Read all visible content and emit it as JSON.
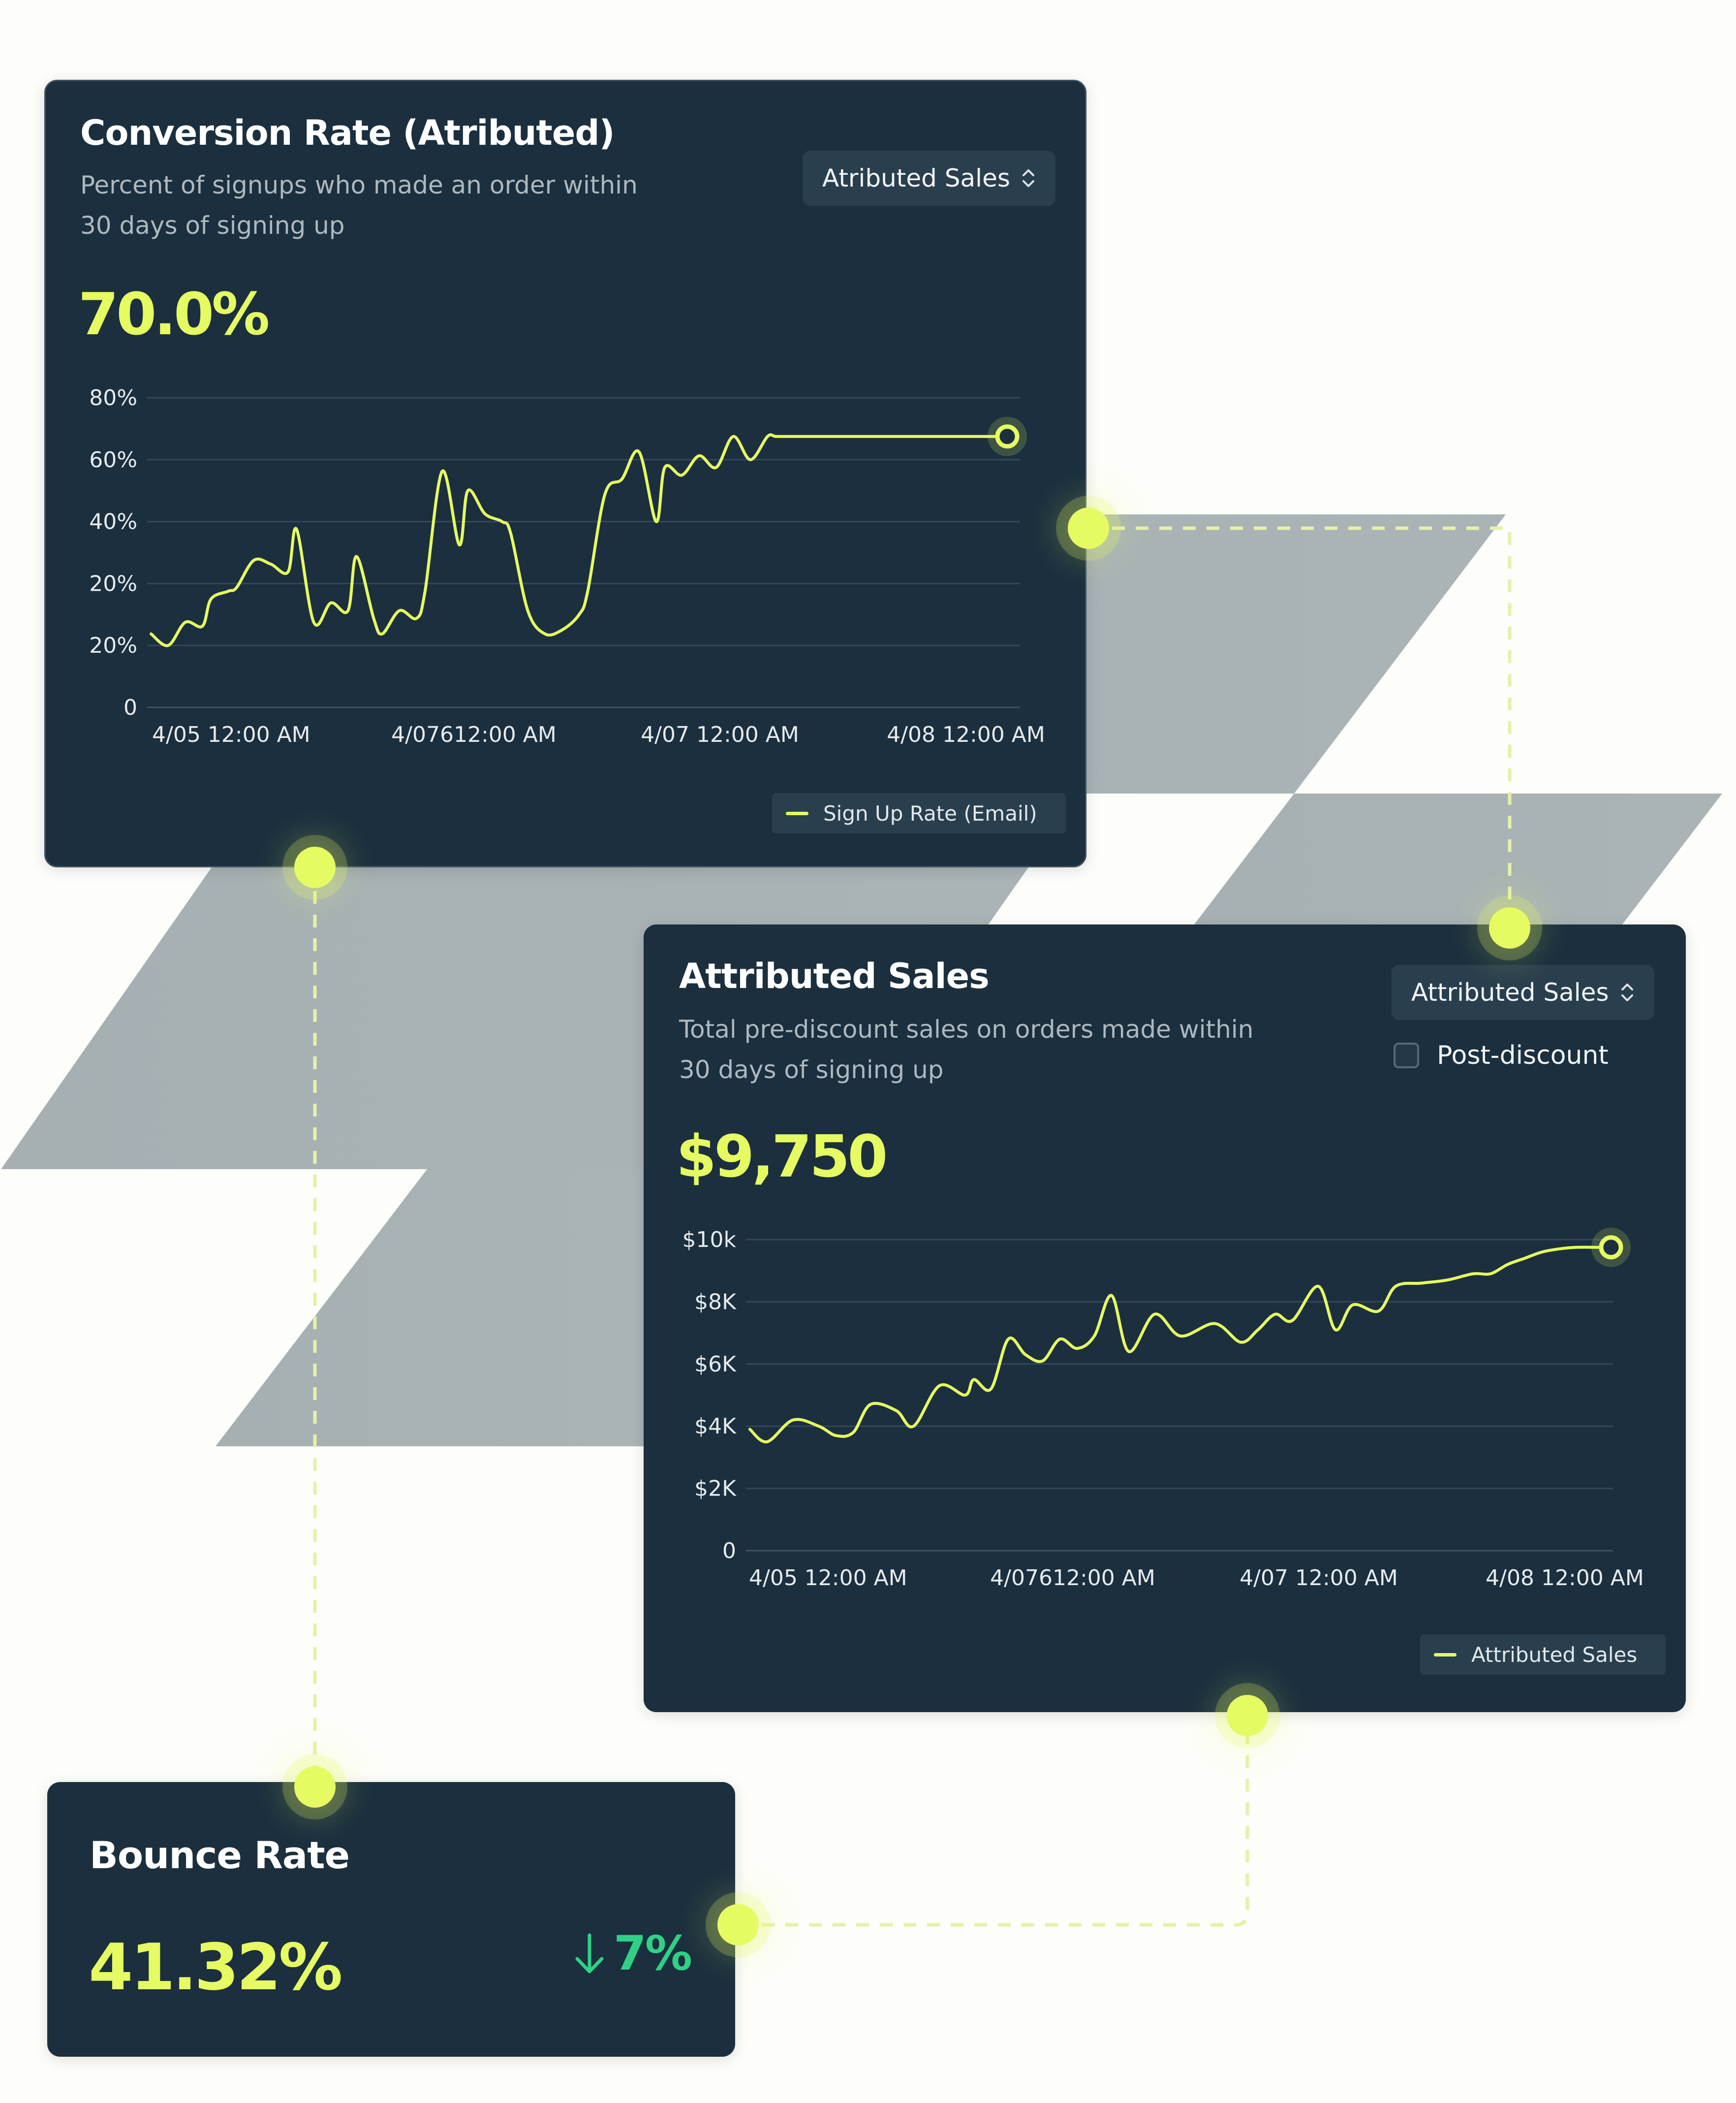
{
  "colors": {
    "accent": "#e6fb62",
    "card_background": "#1b2f3e",
    "positive": "#2fd187",
    "background_shapes": "#a9b3b6"
  },
  "conversion_card": {
    "title": "Conversion Rate (Atributed)",
    "subtitle": "Percent of signups who made an order within 30 days of signing up",
    "value": "70.0%",
    "dropdown_label": "Atributed Sales",
    "legend_label": "Sign Up Rate (Email)",
    "y_tick_labels": [
      "80%",
      "60%",
      "40%",
      "20%",
      "20%",
      "0"
    ],
    "x_tick_labels": [
      "4/05 12:00 AM",
      "4/07612:00 AM",
      "4/07 12:00 AM",
      "4/08 12:00 AM"
    ]
  },
  "sales_card": {
    "title": "Attributed Sales",
    "subtitle": "Total pre-discount sales on orders made within 30 days of signing up",
    "value": "$9,750",
    "dropdown_label": "Attributed Sales",
    "checkbox_label": "Post-discount",
    "checkbox_checked": false,
    "legend_label": "Attributed Sales",
    "y_tick_labels": [
      "$10k",
      "$8K",
      "$6K",
      "$4K",
      "$2K",
      "0"
    ],
    "x_tick_labels": [
      "4/05 12:00 AM",
      "4/07612:00 AM",
      "4/07 12:00 AM",
      "4/08 12:00 AM"
    ]
  },
  "bounce_card": {
    "title": "Bounce Rate",
    "value": "41.32%",
    "delta": "7%",
    "delta_direction": "down",
    "delta_icon": "arrow-down-icon"
  },
  "chart_data": [
    {
      "type": "line",
      "title": "Conversion Rate (Atributed)",
      "ylim": [
        0,
        80
      ],
      "grid": true,
      "legend_position": "bottom-right",
      "x_tick_labels": [
        "4/05 12:00 AM",
        "4/07612:00 AM",
        "4/07 12:00 AM",
        "4/08 12:00 AM"
      ],
      "series": [
        {
          "name": "Sign Up Rate (Email)",
          "x": [
            0,
            0.02,
            0.04,
            0.06,
            0.07,
            0.09,
            0.1,
            0.12,
            0.14,
            0.16,
            0.17,
            0.19,
            0.21,
            0.23,
            0.24,
            0.26,
            0.27,
            0.29,
            0.31,
            0.32,
            0.34,
            0.36,
            0.37,
            0.39,
            0.41,
            0.42,
            0.44,
            0.46,
            0.48,
            0.5,
            0.51,
            0.53,
            0.55,
            0.57,
            0.59,
            0.6,
            0.62,
            0.64,
            0.66,
            0.68,
            0.7,
            0.72,
            0.73,
            0.75,
            0.77,
            0.78,
            0.8,
            0.82,
            0.84,
            0.86,
            0.88,
            0.9,
            0.92,
            0.94,
            0.96,
            0.98,
            1.0
          ],
          "values": [
            19,
            16,
            22,
            21,
            28,
            30,
            31,
            38,
            37,
            35,
            46,
            22,
            27,
            25,
            39,
            23,
            19,
            25,
            23,
            30,
            61,
            42,
            56,
            50,
            48,
            45,
            25,
            19,
            20,
            24,
            30,
            55,
            59,
            66,
            48,
            62,
            60,
            65,
            62,
            70,
            64,
            70,
            70,
            70,
            70,
            70,
            70,
            70,
            70,
            70,
            70,
            70,
            70,
            70,
            70,
            70,
            70
          ]
        }
      ]
    },
    {
      "type": "line",
      "title": "Attributed Sales",
      "ylim": [
        0,
        10000
      ],
      "grid": true,
      "legend_position": "bottom-right",
      "x_tick_labels": [
        "4/05 12:00 AM",
        "4/07612:00 AM",
        "4/07 12:00 AM",
        "4/08 12:00 AM"
      ],
      "series": [
        {
          "name": "Attributed Sales",
          "x": [
            0,
            0.02,
            0.05,
            0.08,
            0.1,
            0.12,
            0.14,
            0.17,
            0.19,
            0.22,
            0.25,
            0.26,
            0.28,
            0.3,
            0.32,
            0.34,
            0.36,
            0.38,
            0.4,
            0.42,
            0.44,
            0.47,
            0.5,
            0.54,
            0.57,
            0.59,
            0.61,
            0.63,
            0.66,
            0.68,
            0.7,
            0.73,
            0.75,
            0.78,
            0.81,
            0.84,
            0.86,
            0.88,
            0.9,
            0.92,
            0.94,
            0.96,
            0.98,
            1.0
          ],
          "values": [
            3900,
            3500,
            4200,
            4000,
            3700,
            3800,
            4700,
            4500,
            4000,
            5300,
            5000,
            5500,
            5200,
            6800,
            6300,
            6100,
            6800,
            6500,
            6900,
            8200,
            6400,
            7600,
            6900,
            7300,
            6700,
            7100,
            7600,
            7400,
            8500,
            7100,
            7900,
            7700,
            8500,
            8600,
            8700,
            8900,
            8900,
            9200,
            9400,
            9600,
            9700,
            9750,
            9750,
            9750
          ]
        }
      ]
    }
  ]
}
